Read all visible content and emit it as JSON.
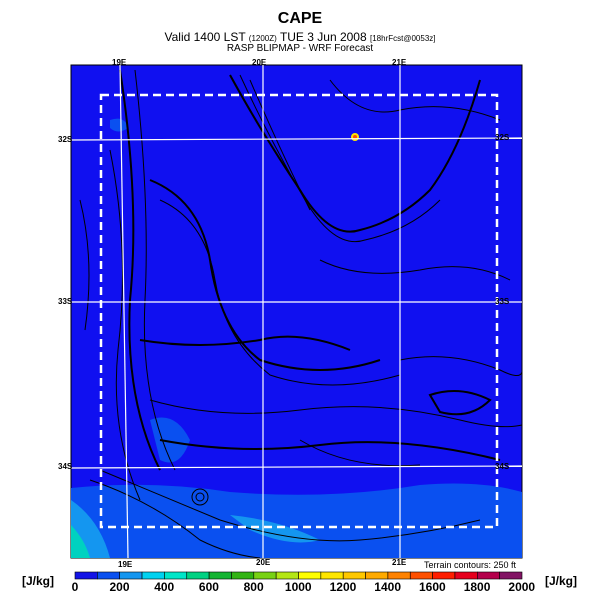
{
  "header": {
    "title": "CAPE",
    "valid": "Valid 1400 LST",
    "utc": "(1200Z)",
    "date": "TUE 3 Jun 2008",
    "fcst": "[18hrFcst@0053z]",
    "source": "RASP BLIPMAP - WRF Forecast"
  },
  "map": {
    "lon_labels": [
      "19E",
      "20E",
      "21E"
    ],
    "lat_labels": [
      "32S",
      "33S",
      "34S"
    ],
    "background_color": "#1010f0",
    "terrain_note": "Terrain contours: 250 ft"
  },
  "colorbar": {
    "unit_left": "[J/kg]",
    "unit_right": "[J/kg]",
    "tick_labels": [
      "0",
      "200",
      "400",
      "600",
      "800",
      "1000",
      "1200",
      "1400",
      "1600",
      "1800",
      "2000"
    ],
    "colors": [
      "#1414e6",
      "#0a50f0",
      "#1496f0",
      "#00d2f0",
      "#00e6c8",
      "#00d282",
      "#14b432",
      "#32b414",
      "#78d214",
      "#b4e614",
      "#ffff00",
      "#ffe600",
      "#ffc800",
      "#ffaa00",
      "#ff8200",
      "#ff5000",
      "#ff1e00",
      "#e6001e",
      "#b4004b",
      "#821464"
    ]
  }
}
